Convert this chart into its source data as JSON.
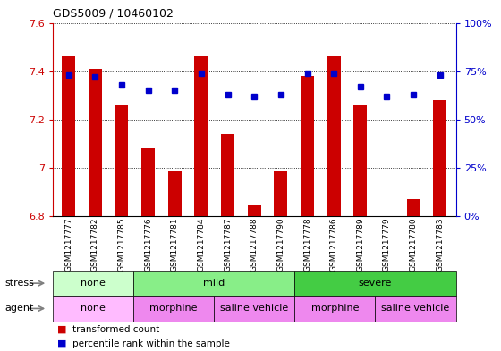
{
  "title": "GDS5009 / 10460102",
  "samples": [
    "GSM1217777",
    "GSM1217782",
    "GSM1217785",
    "GSM1217776",
    "GSM1217781",
    "GSM1217784",
    "GSM1217787",
    "GSM1217788",
    "GSM1217790",
    "GSM1217778",
    "GSM1217786",
    "GSM1217789",
    "GSM1217779",
    "GSM1217780",
    "GSM1217783"
  ],
  "transformed_counts": [
    7.46,
    7.41,
    7.26,
    7.08,
    6.99,
    7.46,
    7.14,
    6.85,
    6.99,
    7.38,
    7.46,
    7.26,
    6.8,
    6.87,
    7.28
  ],
  "percentile_ranks": [
    73,
    72,
    68,
    65,
    65,
    74,
    63,
    62,
    63,
    74,
    74,
    67,
    62,
    63,
    73
  ],
  "ylim_left": [
    6.8,
    7.6
  ],
  "ylim_right": [
    0,
    100
  ],
  "yticks_left": [
    6.8,
    7.0,
    7.2,
    7.4,
    7.6
  ],
  "ytick_labels_left": [
    "6.8",
    "7",
    "7.2",
    "7.4",
    "7.6"
  ],
  "yticks_right": [
    0,
    25,
    50,
    75,
    100
  ],
  "ytick_labels_right": [
    "0%",
    "25%",
    "50%",
    "75%",
    "100%"
  ],
  "bar_color": "#cc0000",
  "dot_color": "#0000cc",
  "bar_bottom": 6.8,
  "stress_groups": [
    {
      "label": "none",
      "start": 0,
      "end": 3,
      "color": "#ccffcc"
    },
    {
      "label": "mild",
      "start": 3,
      "end": 9,
      "color": "#88ee88"
    },
    {
      "label": "severe",
      "start": 9,
      "end": 15,
      "color": "#44cc44"
    }
  ],
  "agent_groups": [
    {
      "label": "none",
      "start": 0,
      "end": 3,
      "color": "#ffbbff"
    },
    {
      "label": "morphine",
      "start": 3,
      "end": 6,
      "color": "#ee88ee"
    },
    {
      "label": "saline vehicle",
      "start": 6,
      "end": 9,
      "color": "#ee88ee"
    },
    {
      "label": "morphine",
      "start": 9,
      "end": 12,
      "color": "#ee88ee"
    },
    {
      "label": "saline vehicle",
      "start": 12,
      "end": 15,
      "color": "#ee88ee"
    }
  ],
  "legend_items": [
    {
      "label": "transformed count",
      "color": "#cc0000"
    },
    {
      "label": "percentile rank within the sample",
      "color": "#0000cc"
    }
  ],
  "bg_color": "#ffffff",
  "grid_color": "#000000",
  "axis_color_left": "#cc0000",
  "axis_color_right": "#0000cc"
}
